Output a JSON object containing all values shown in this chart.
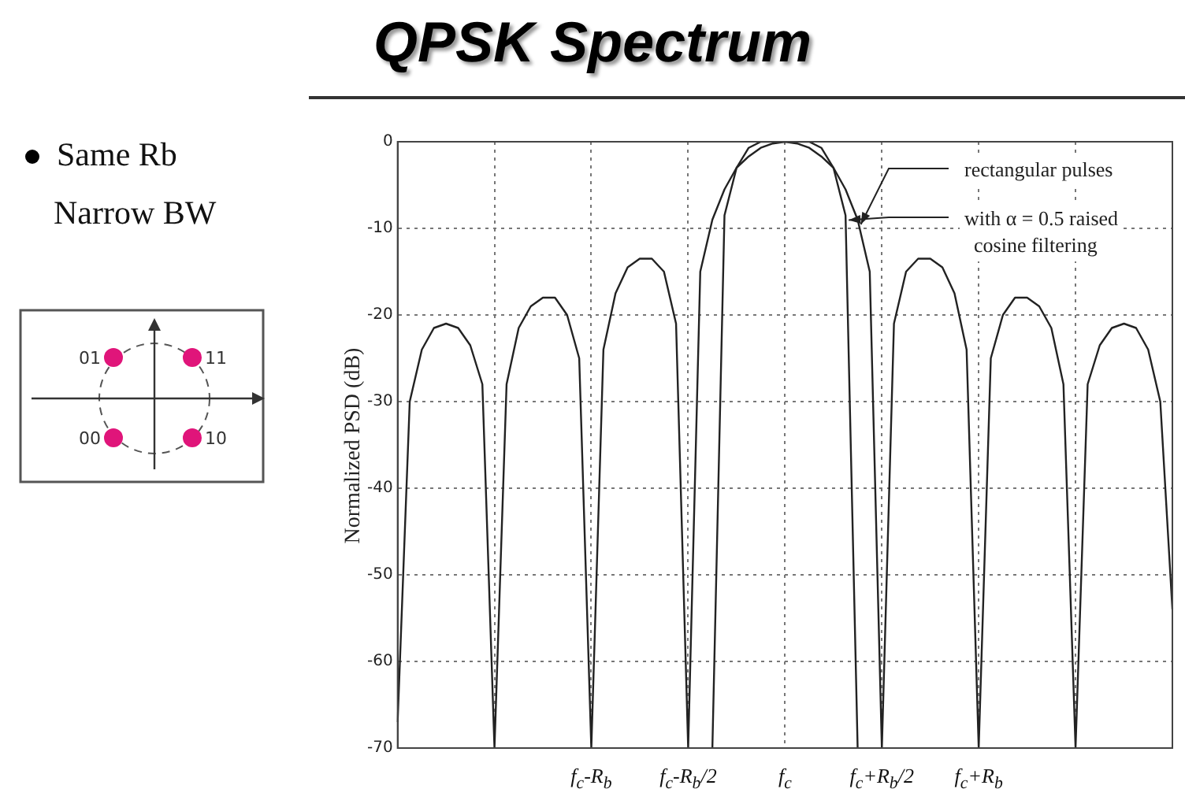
{
  "chart_data": {
    "type": "line",
    "title": "QPSK Spectrum",
    "ylabel": "Normalized PSD (dB)",
    "annotations": [
      "Same Rb",
      "Narrow BW",
      "01",
      "11",
      "00",
      "10"
    ],
    "categories": [
      null,
      null,
      null,
      null,
      null,
      null,
      null,
      null,
      null,
      null,
      null,
      null,
      null,
      null,
      null,
      null,
      "f$_{c}$-R$_{b}$",
      null,
      null,
      null,
      null,
      null,
      null,
      null,
      "f$_{c}$-R$_{b}$/2",
      null,
      null,
      null,
      null,
      null,
      null,
      null,
      "f$_{c}$",
      null,
      null,
      null,
      null,
      null,
      null,
      null,
      "f$_{c}$+R$_{b}$/2",
      null,
      null,
      null,
      null,
      null,
      null,
      null,
      "f$_{c}$+R$_{b}$",
      null,
      null,
      null,
      null,
      null,
      null,
      null,
      null,
      null,
      null,
      null,
      null,
      null,
      null,
      null,
      null
    ],
    "series": [
      {
        "name": "rectangular pulses",
        "color": "#222222",
        "values": [
          -67,
          -30,
          -24,
          -21.5,
          -21,
          -21.5,
          -23.5,
          -28,
          -70,
          -28,
          -21.5,
          -19,
          -18,
          -18,
          -20,
          -25,
          -70,
          -24,
          -17.5,
          -14.5,
          -13.5,
          -13.5,
          -15,
          -21,
          -70,
          -15,
          -9,
          -5.5,
          -3,
          -1.7,
          -0.7,
          -0.2,
          0,
          -0.2,
          -0.7,
          -1.7,
          -3,
          -5.5,
          -9,
          -15,
          -70,
          -21,
          -15,
          -13.5,
          -13.5,
          -14.5,
          -17.5,
          -24,
          -70,
          -25,
          -20,
          -18,
          -18,
          -19,
          -21.5,
          -28,
          -70,
          -28,
          -23.5,
          -21.5,
          -21,
          -21.5,
          -24,
          -30,
          -54
        ]
      },
      {
        "name": "with α = 0.5 raised cosine filtering",
        "color": "#222222",
        "values": [
          null,
          null,
          null,
          null,
          null,
          null,
          null,
          null,
          null,
          null,
          null,
          null,
          null,
          null,
          null,
          null,
          null,
          null,
          null,
          null,
          null,
          null,
          null,
          null,
          null,
          null,
          -70,
          -8.5,
          -3,
          -0.7,
          0,
          0,
          0,
          0,
          0,
          -0.7,
          -3,
          -8.5,
          -70,
          null,
          null,
          null,
          null,
          null,
          null,
          null,
          null,
          null,
          null,
          null,
          null,
          null,
          null,
          null,
          null,
          null,
          null,
          null,
          null,
          null,
          null,
          null,
          null,
          null,
          null
        ]
      }
    ],
    "ylim": [
      -70,
      0
    ],
    "yticks": [
      -70,
      -60,
      -50,
      -40,
      -30,
      -20,
      -10,
      0
    ],
    "grid": true
  }
}
